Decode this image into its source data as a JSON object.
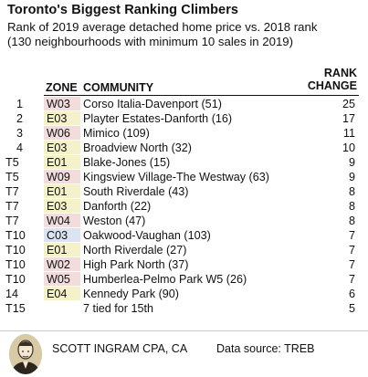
{
  "title": "Toronto's Biggest Ranking Climbers",
  "subtitle_line1": "Rank of 2019 average detached home price vs. 2018 rank",
  "subtitle_line2": "(130 neighbourhoods with minimum 10 sales in 2019)",
  "headers": {
    "zone": "ZONE",
    "community": "COMMUNITY",
    "change_line1": "RANK",
    "change_line2": "CHANGE"
  },
  "zone_colors": {
    "W": "#f2dcdc",
    "E": "#f5f1c8",
    "C": "#dce4f2"
  },
  "rows": [
    {
      "rank": "1",
      "zone": "W03",
      "community": "Corso Italia-Davenport (51)",
      "change": "25"
    },
    {
      "rank": "2",
      "zone": "E03",
      "community": "Playter Estates-Danforth (16)",
      "change": "17"
    },
    {
      "rank": "3",
      "zone": "W06",
      "community": "Mimico (109)",
      "change": "11"
    },
    {
      "rank": "4",
      "zone": "E03",
      "community": "Broadview North (32)",
      "change": "10"
    },
    {
      "rank": "T5",
      "zone": "E01",
      "community": "Blake-Jones (15)",
      "change": "9"
    },
    {
      "rank": "T5",
      "zone": "W09",
      "community": "Kingsview Village-The Westway (63)",
      "change": "9"
    },
    {
      "rank": "T7",
      "zone": "E01",
      "community": "South Riverdale (43)",
      "change": "8"
    },
    {
      "rank": "T7",
      "zone": "E03",
      "community": "Danforth (22)",
      "change": "8"
    },
    {
      "rank": "T7",
      "zone": "W04",
      "community": "Weston (47)",
      "change": "8"
    },
    {
      "rank": "T10",
      "zone": "C03",
      "community": "Oakwood-Vaughan (103)",
      "change": "7"
    },
    {
      "rank": "T10",
      "zone": "E01",
      "community": "North Riverdale (27)",
      "change": "7"
    },
    {
      "rank": "T10",
      "zone": "W02",
      "community": "High Park North (37)",
      "change": "7"
    },
    {
      "rank": "T10",
      "zone": "W05",
      "community": "Humberlea-Pelmo Park W5 (26)",
      "change": "7"
    },
    {
      "rank": "14",
      "zone": "E04",
      "community": "Kennedy Park (90)",
      "change": "6"
    },
    {
      "rank": "T15",
      "zone": "",
      "community": "7 tied for 15th",
      "change": "5"
    }
  ],
  "footer": {
    "author": "SCOTT INGRAM CPA, CA",
    "source": "Data source: TREB",
    "avatar_icon": "portrait-sketch-icon"
  }
}
